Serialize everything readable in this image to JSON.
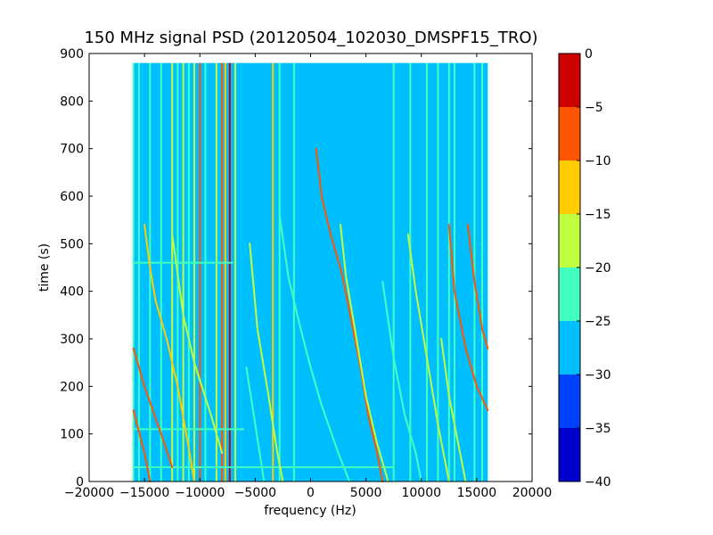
{
  "chart_data": {
    "type": "heatmap",
    "title": "150 MHz signal PSD (20120504_102030_DMSPF15_TRO)",
    "xlabel": "frequency (Hz)",
    "ylabel": "time (s)",
    "xlim": [
      -20000,
      20000
    ],
    "ylim": [
      0,
      900
    ],
    "xticks": [
      -20000,
      -15000,
      -10000,
      -5000,
      0,
      5000,
      10000,
      15000,
      20000
    ],
    "xtick_labels": [
      "−20000",
      "−15000",
      "−10000",
      "−5000",
      "0",
      "5000",
      "10000",
      "15000",
      "20000"
    ],
    "yticks": [
      0,
      100,
      200,
      300,
      400,
      500,
      600,
      700,
      800,
      900
    ],
    "ytick_labels": [
      "0",
      "100",
      "200",
      "300",
      "400",
      "500",
      "600",
      "700",
      "800",
      "900"
    ],
    "data_extent": {
      "x": [
        -16000,
        16000
      ],
      "y": [
        0,
        880
      ]
    },
    "background_level": -27.5,
    "colorbar": {
      "levels": [
        -40,
        -35,
        -30,
        -25,
        -20,
        -15,
        -10,
        -5,
        0
      ],
      "tick_labels": [
        "−40",
        "−35",
        "−30",
        "−25",
        "−20",
        "−15",
        "−10",
        "−5",
        "0"
      ],
      "colors": [
        "#0000cd",
        "#0040ff",
        "#00bfff",
        "#40ffbf",
        "#bfff40",
        "#ffcc00",
        "#ff5500",
        "#cc0000"
      ]
    },
    "vertical_lines": [
      {
        "x": -16000,
        "level": -22.5
      },
      {
        "x": -15500,
        "level": -22.5
      },
      {
        "x": -14500,
        "level": -22.5
      },
      {
        "x": -13500,
        "level": -22.5
      },
      {
        "x": -12500,
        "level": -17.5
      },
      {
        "x": -12000,
        "level": -22.5
      },
      {
        "x": -11500,
        "level": -17.5
      },
      {
        "x": -11000,
        "level": -22.5
      },
      {
        "x": -10500,
        "level": -17.5
      },
      {
        "x": -10000,
        "level": -7.5
      },
      {
        "x": -9500,
        "level": -22.5
      },
      {
        "x": -8500,
        "level": -17.5
      },
      {
        "x": -8000,
        "level": -7.5
      },
      {
        "x": -7700,
        "level": -12.5
      },
      {
        "x": -7300,
        "level": -2.5
      },
      {
        "x": -6800,
        "level": -17.5
      },
      {
        "x": -3400,
        "level": -12.5
      },
      {
        "x": -2800,
        "level": -22.5
      },
      {
        "x": -1500,
        "level": -22.5
      },
      {
        "x": 7500,
        "level": -22.5
      },
      {
        "x": 9000,
        "level": -22.5
      },
      {
        "x": 10500,
        "level": -22.5
      },
      {
        "x": 11500,
        "level": -22.5
      },
      {
        "x": 12500,
        "level": -22.5
      },
      {
        "x": 13000,
        "level": -22.5
      },
      {
        "x": 14800,
        "level": -22.5
      },
      {
        "x": 15500,
        "level": -22.5
      }
    ],
    "doppler_traces": [
      {
        "points": [
          [
            -16000,
            280
          ],
          [
            -15000,
            200
          ],
          [
            -13500,
            100
          ],
          [
            -12500,
            30
          ]
        ],
        "level": -7.5
      },
      {
        "points": [
          [
            -16000,
            150
          ],
          [
            -15000,
            60
          ],
          [
            -14500,
            0
          ]
        ],
        "level": -7.5
      },
      {
        "points": [
          [
            -15000,
            540
          ],
          [
            -14500,
            450
          ],
          [
            -14000,
            380
          ],
          [
            -13000,
            300
          ],
          [
            -12000,
            200
          ],
          [
            -11000,
            70
          ],
          [
            -10500,
            0
          ]
        ],
        "level": -12.5
      },
      {
        "points": [
          [
            -12500,
            520
          ],
          [
            -11500,
            350
          ],
          [
            -10500,
            250
          ],
          [
            -9000,
            140
          ],
          [
            -8000,
            60
          ]
        ],
        "level": -17.5
      },
      {
        "points": [
          [
            -5500,
            500
          ],
          [
            -4800,
            320
          ],
          [
            -3800,
            180
          ],
          [
            -3000,
            60
          ],
          [
            -2500,
            0
          ]
        ],
        "level": -17.5
      },
      {
        "points": [
          [
            -5800,
            240
          ],
          [
            -5000,
            120
          ],
          [
            -4200,
            0
          ]
        ],
        "level": -22.5
      },
      {
        "points": [
          [
            -2800,
            560
          ],
          [
            -2000,
            430
          ],
          [
            -1000,
            330
          ],
          [
            0,
            240
          ],
          [
            1000,
            160
          ],
          [
            2500,
            60
          ],
          [
            3500,
            0
          ]
        ],
        "level": -22.5
      },
      {
        "points": [
          [
            500,
            700
          ],
          [
            1000,
            600
          ],
          [
            1800,
            520
          ],
          [
            2800,
            440
          ],
          [
            3500,
            360
          ],
          [
            4500,
            240
          ],
          [
            5200,
            140
          ],
          [
            6000,
            60
          ],
          [
            6500,
            0
          ]
        ],
        "level": -7.5
      },
      {
        "points": [
          [
            2700,
            540
          ],
          [
            3200,
            430
          ],
          [
            4000,
            320
          ],
          [
            5000,
            180
          ],
          [
            6000,
            80
          ],
          [
            7000,
            0
          ]
        ],
        "level": -17.5
      },
      {
        "points": [
          [
            6500,
            420
          ],
          [
            7500,
            260
          ],
          [
            8500,
            140
          ],
          [
            9500,
            60
          ],
          [
            10000,
            0
          ]
        ],
        "level": -22.5
      },
      {
        "points": [
          [
            8800,
            520
          ],
          [
            9500,
            400
          ],
          [
            10500,
            260
          ],
          [
            11500,
            120
          ],
          [
            12500,
            0
          ]
        ],
        "level": -17.5
      },
      {
        "points": [
          [
            12500,
            540
          ],
          [
            13000,
            400
          ],
          [
            14000,
            280
          ],
          [
            15000,
            200
          ],
          [
            16000,
            150
          ]
        ],
        "level": -7.5
      },
      {
        "points": [
          [
            14200,
            540
          ],
          [
            14800,
            420
          ],
          [
            15500,
            320
          ],
          [
            16000,
            280
          ]
        ],
        "level": -7.5
      },
      {
        "points": [
          [
            11800,
            300
          ],
          [
            12500,
            180
          ],
          [
            13500,
            60
          ],
          [
            14000,
            0
          ]
        ],
        "level": -17.5
      }
    ],
    "horizontal_bands": [
      {
        "y": 30,
        "x": [
          -16000,
          7500
        ],
        "level": -22.5
      },
      {
        "y": 110,
        "x": [
          -16000,
          -6000
        ],
        "level": -22.5
      },
      {
        "y": 460,
        "x": [
          -16000,
          -7000
        ],
        "level": -22.5
      }
    ]
  }
}
